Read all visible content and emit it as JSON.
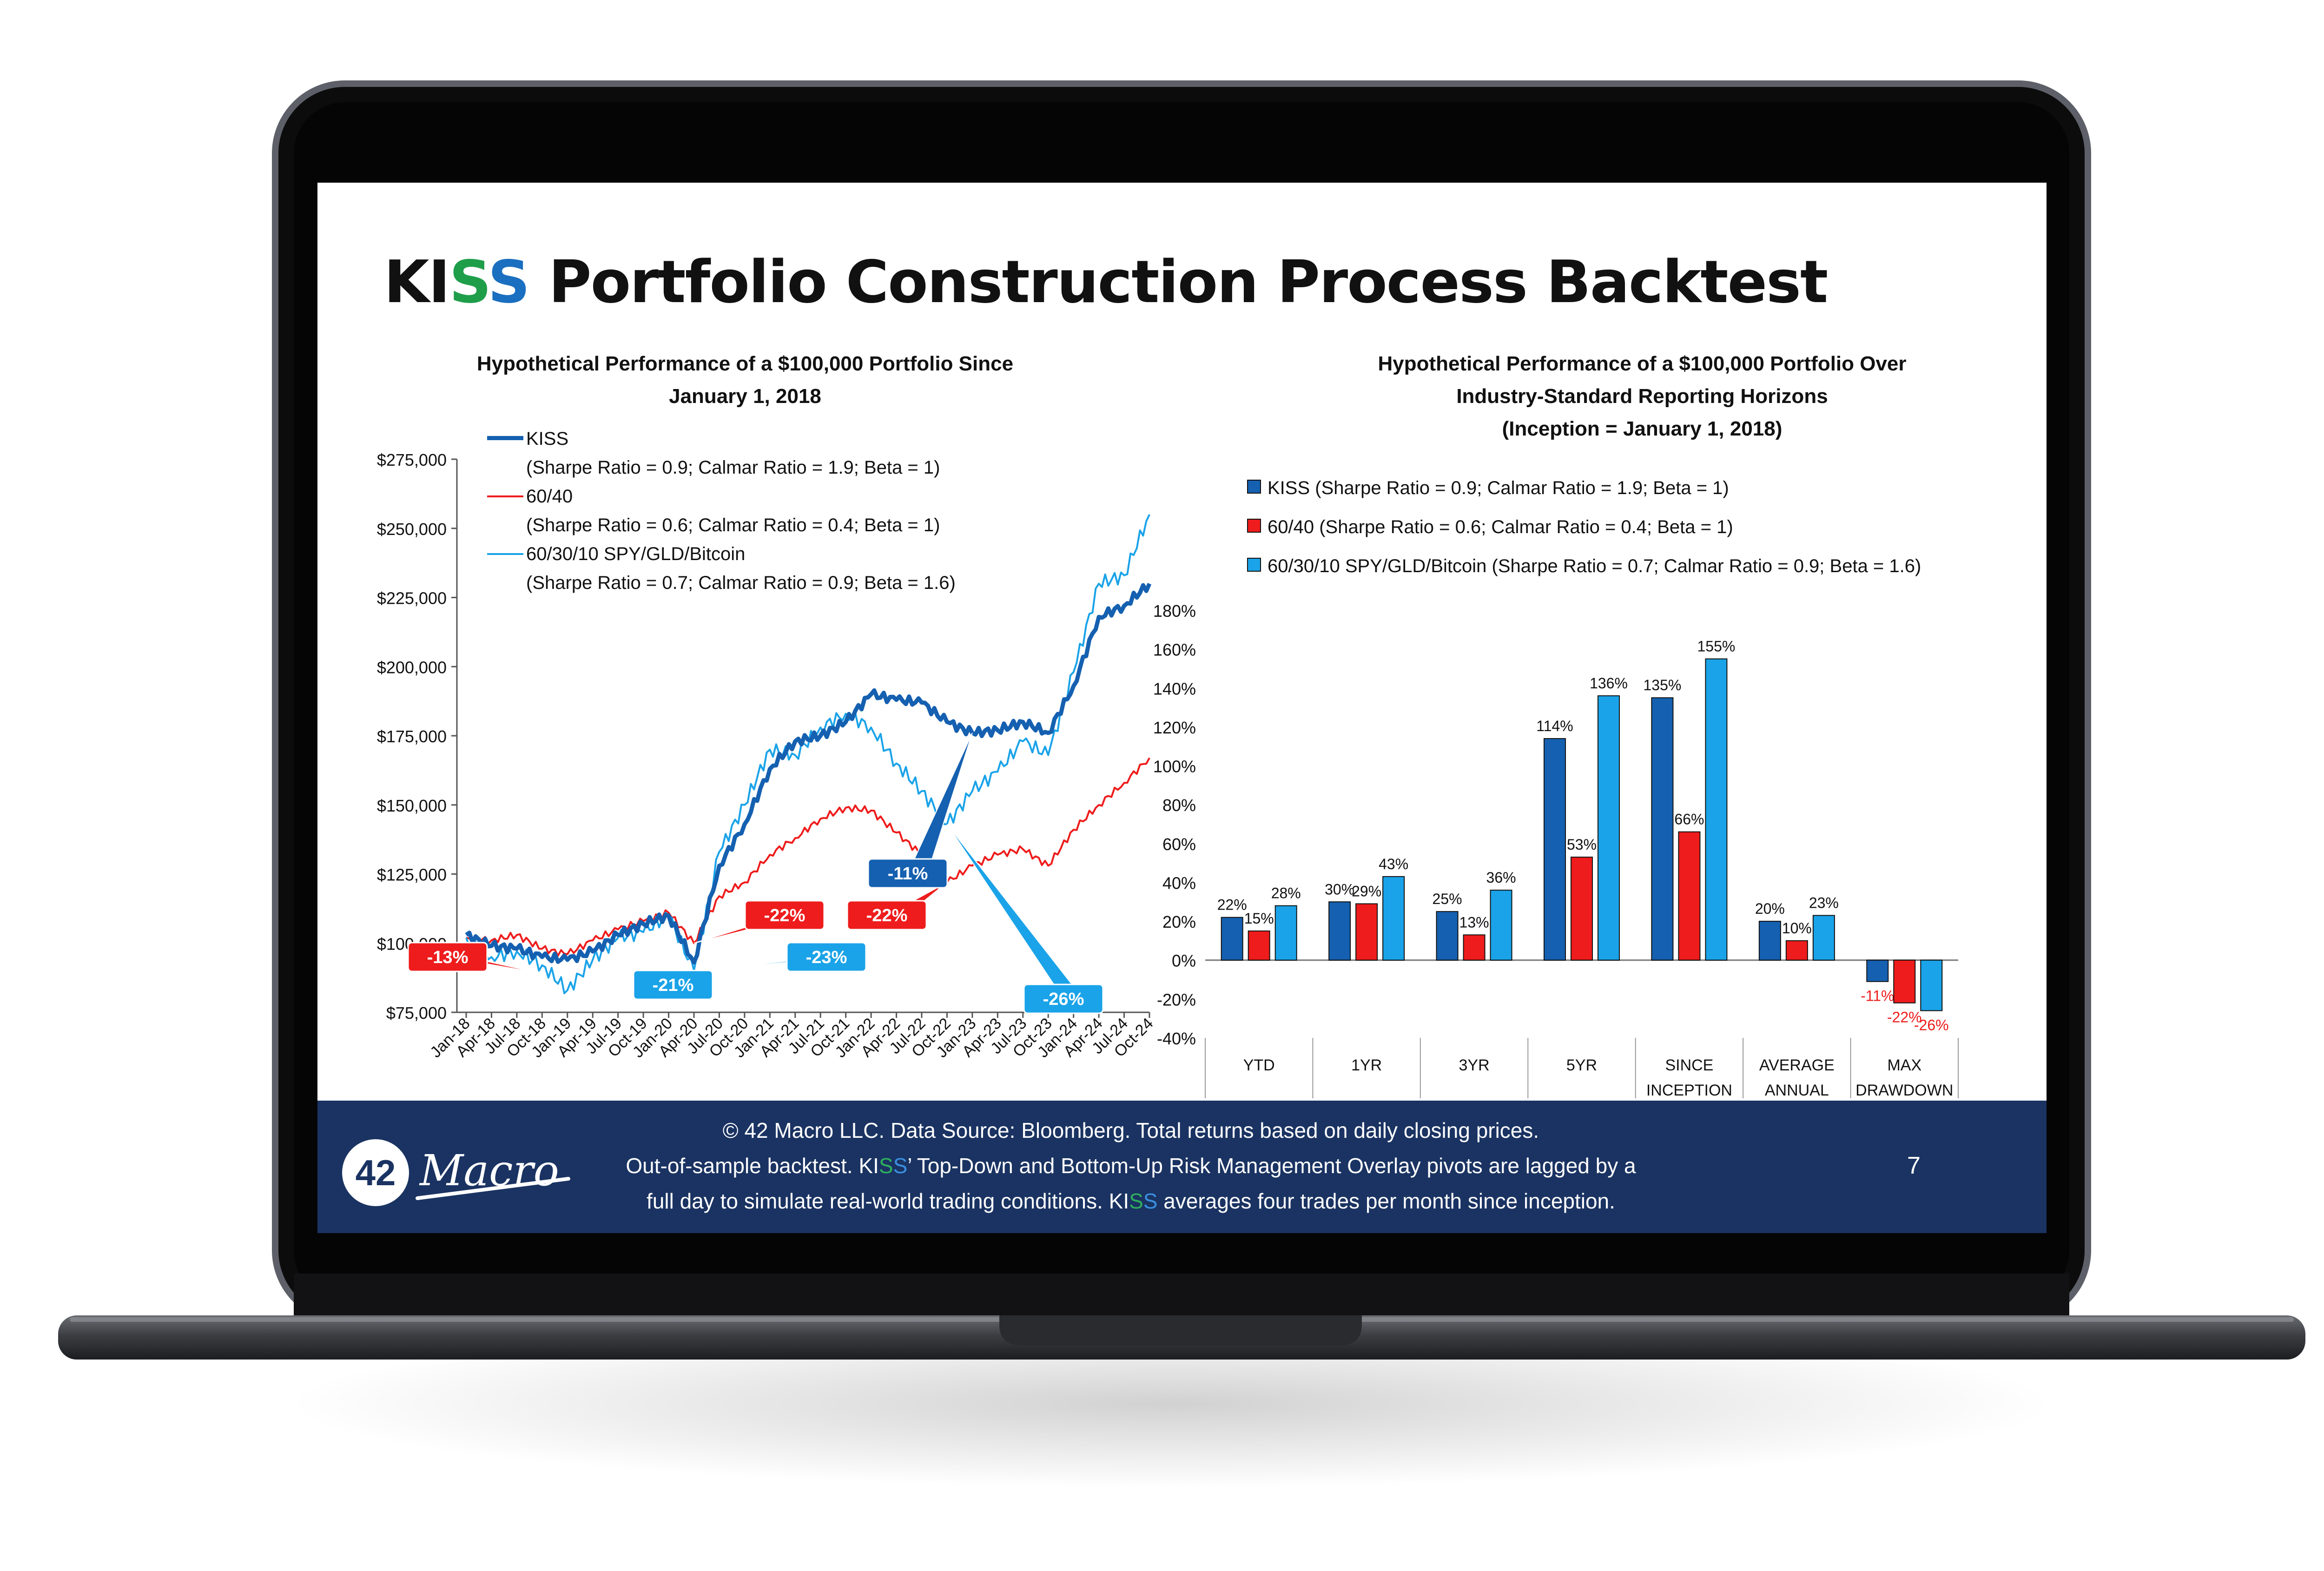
{
  "slide": {
    "title_prefix": "KI",
    "title_s1": "S",
    "title_s2": "S",
    "title_rest": " Portfolio Construction Process Backtest",
    "colors": {
      "title_green": "#1f9e4a",
      "title_blue": "#1a6fc0",
      "footer_bg": "#1a3362"
    }
  },
  "left_chart": {
    "title_line1": "Hypothetical Performance of a $100,000 Portfolio Since",
    "title_line2": "January 1, 2018",
    "legend": [
      {
        "name": "KISS",
        "detail": "(Sharpe Ratio = 0.9; Calmar Ratio = 1.9; Beta = 1)",
        "color": "#1560b0"
      },
      {
        "name": "60/40",
        "detail": "(Sharpe Ratio = 0.6; Calmar Ratio = 0.4; Beta = 1)",
        "color": "#ee1c1c"
      },
      {
        "name": "60/30/10 SPY/GLD/Bitcoin",
        "detail": "(Sharpe Ratio = 0.7; Calmar Ratio = 0.9; Beta = 1.6)",
        "color": "#1aa3e8"
      }
    ]
  },
  "right_chart": {
    "title_line1": "Hypothetical Performance of a $100,000 Portfolio Over",
    "title_line2": "Industry-Standard Reporting Horizons",
    "title_line3": "(Inception = January 1, 2018)",
    "legend": [
      {
        "label": "KISS (Sharpe Ratio = 0.9; Calmar Ratio = 1.9; Beta = 1)",
        "color": "#1560b0"
      },
      {
        "label": "60/40 (Sharpe Ratio = 0.6; Calmar Ratio = 0.4; Beta = 1)",
        "color": "#ee1c1c"
      },
      {
        "label": "60/30/10 SPY/GLD/Bitcoin (Sharpe Ratio = 0.7; Calmar Ratio = 0.9; Beta = 1.6)",
        "color": "#1aa3e8"
      }
    ]
  },
  "chart_data": [
    {
      "type": "line",
      "title": "Hypothetical Performance of a $100,000 Portfolio Since January 1, 2018",
      "x": [
        "Jan-18",
        "Apr-18",
        "Jul-18",
        "Oct-18",
        "Jan-19",
        "Apr-19",
        "Jul-19",
        "Oct-19",
        "Jan-20",
        "Apr-20",
        "Jul-20",
        "Oct-20",
        "Jan-21",
        "Apr-21",
        "Jul-21",
        "Oct-21",
        "Jan-22",
        "Apr-22",
        "Jul-22",
        "Oct-22",
        "Jan-23",
        "Apr-23",
        "Jul-23",
        "Oct-23",
        "Jan-24",
        "Apr-24",
        "Jul-24",
        "Oct-24"
      ],
      "ylim": [
        75000,
        275000
      ],
      "yticks": [
        "$75,000",
        "$100,000",
        "$125,000",
        "$150,000",
        "$175,000",
        "$200,000",
        "$225,000",
        "$250,000",
        "$275,000"
      ],
      "series": [
        {
          "name": "KISS",
          "color": "#1560b0",
          "values": [
            103000,
            99000,
            98000,
            95000,
            94000,
            97000,
            103000,
            107000,
            110000,
            93000,
            128000,
            143000,
            163000,
            173000,
            175000,
            180000,
            190000,
            188000,
            187000,
            180000,
            176000,
            177000,
            180000,
            176000,
            193000,
            218000,
            222000,
            230000
          ]
        },
        {
          "name": "60/40",
          "color": "#ee1c1c",
          "values": [
            102000,
            101000,
            103000,
            98000,
            96000,
            101000,
            105000,
            108000,
            111000,
            100000,
            117000,
            122000,
            132000,
            138000,
            145000,
            149000,
            148000,
            140000,
            132000,
            122000,
            128000,
            132000,
            134000,
            128000,
            141000,
            150000,
            158000,
            167000
          ]
        },
        {
          "name": "60/30/10 SPY/GLD/Bitcoin",
          "color": "#1aa3e8",
          "values": [
            102000,
            95000,
            97000,
            92000,
            83000,
            94000,
            102000,
            104000,
            110000,
            90000,
            133000,
            150000,
            170000,
            168000,
            178000,
            183000,
            178000,
            165000,
            155000,
            143000,
            155000,
            162000,
            173000,
            168000,
            198000,
            230000,
            233000,
            255000
          ]
        }
      ],
      "annotations": [
        {
          "label": "-13%",
          "color": "#ee1c1c",
          "x": "Oct-18",
          "y": 89000
        },
        {
          "label": "-21%",
          "color": "#1aa3e8",
          "x": "Jan-19",
          "y": 82000
        },
        {
          "label": "-23%",
          "color": "#1aa3e8",
          "x": "Apr-20",
          "y": 90000
        },
        {
          "label": "-22%",
          "color": "#ee1c1c",
          "x": "Apr-20",
          "y": 100000
        },
        {
          "label": "-22%",
          "color": "#ee1c1c",
          "x": "Oct-22",
          "y": 122000
        },
        {
          "label": "-11%",
          "color": "#1560b0",
          "x": "Jan-23",
          "y": 176000
        },
        {
          "label": "-26%",
          "color": "#1aa3e8",
          "x": "Oct-22",
          "y": 143000
        }
      ]
    },
    {
      "type": "bar",
      "title": "Hypothetical Performance of a $100,000 Portfolio Over Industry-Standard Reporting Horizons (Inception = January 1, 2018)",
      "categories": [
        "YTD",
        "1YR",
        "3YR",
        "5YR",
        "SINCE INCEPTION",
        "AVERAGE ANNUAL RETURN",
        "MAX DRAWDOWN"
      ],
      "ylim": [
        -40,
        180
      ],
      "yticks": [
        "-40%",
        "-20%",
        "0%",
        "20%",
        "40%",
        "60%",
        "80%",
        "100%",
        "120%",
        "140%",
        "160%",
        "180%"
      ],
      "series": [
        {
          "name": "KISS (Sharpe Ratio = 0.9; Calmar Ratio = 1.9; Beta = 1)",
          "color": "#1560b0",
          "values": [
            22,
            30,
            25,
            114,
            135,
            20,
            -11
          ],
          "labels": [
            "22%",
            "30%",
            "25%",
            "114%",
            "135%",
            "20%",
            "-11%"
          ]
        },
        {
          "name": "60/40 (Sharpe Ratio = 0.6; Calmar Ratio = 0.4; Beta = 1)",
          "color": "#ee1c1c",
          "values": [
            15,
            29,
            13,
            53,
            66,
            10,
            -22
          ],
          "labels": [
            "15%",
            "29%",
            "13%",
            "53%",
            "66%",
            "10%",
            "-22%"
          ]
        },
        {
          "name": "60/30/10 SPY/GLD/Bitcoin (Sharpe Ratio = 0.7; Calmar Ratio = 0.9; Beta = 1.6)",
          "color": "#1aa3e8",
          "values": [
            28,
            43,
            36,
            136,
            155,
            23,
            -26
          ],
          "labels": [
            "28%",
            "43%",
            "36%",
            "136%",
            "155%",
            "23%",
            "-26%"
          ]
        }
      ]
    }
  ],
  "footer": {
    "line1": "© 42 Macro LLC. Data Source: Bloomberg. Total returns based on daily closing prices.",
    "line2_a": "Out-of-sample backtest. KI",
    "line2_s1": "S",
    "line2_s2": "S",
    "line2_b": "’ Top-Down and Bottom-Up Risk Management Overlay pivots are lagged by a",
    "line3_a": "full day to simulate real-world trading conditions. KI",
    "line3_s1": "S",
    "line3_s2": "S",
    "line3_b": " averages four trades per month since inception.",
    "logo_number": "42",
    "logo_word": "Macro",
    "page_number": "7"
  }
}
